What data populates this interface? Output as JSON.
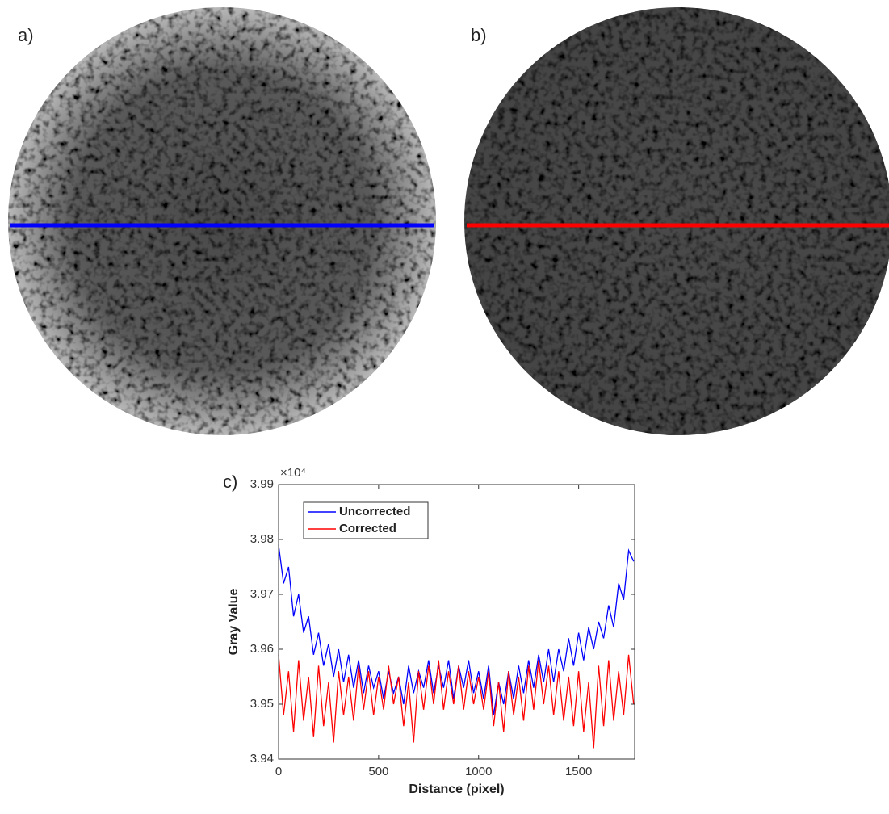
{
  "panel_labels": {
    "a": "a)",
    "b": "b)"
  },
  "chart_data": {
    "type": "line",
    "panel_label": "c)",
    "x_label": "Distance (pixel)",
    "y_label": "Gray Value",
    "y_multiplier": "×10⁴",
    "x": [
      0,
      25,
      50,
      75,
      100,
      125,
      150,
      175,
      200,
      225,
      250,
      275,
      300,
      325,
      350,
      375,
      400,
      425,
      450,
      475,
      500,
      525,
      550,
      575,
      600,
      625,
      650,
      675,
      700,
      725,
      750,
      775,
      800,
      825,
      850,
      875,
      900,
      925,
      950,
      975,
      1000,
      1025,
      1050,
      1075,
      1100,
      1125,
      1150,
      1175,
      1200,
      1225,
      1250,
      1275,
      1300,
      1325,
      1350,
      1375,
      1400,
      1425,
      1450,
      1475,
      1500,
      1525,
      1550,
      1575,
      1600,
      1625,
      1650,
      1675,
      1700,
      1725,
      1750,
      1775
    ],
    "series": [
      {
        "name": "Uncorrected",
        "color": "#0000ff",
        "values": [
          39790,
          39720,
          39750,
          39660,
          39700,
          39630,
          39660,
          39590,
          39630,
          39570,
          39610,
          39550,
          39600,
          39540,
          39590,
          39530,
          39580,
          39520,
          39570,
          39530,
          39560,
          39510,
          39560,
          39520,
          39550,
          39500,
          39570,
          39520,
          39560,
          39530,
          39580,
          39520,
          39570,
          39530,
          39580,
          39510,
          39570,
          39530,
          39580,
          39520,
          39560,
          39510,
          39570,
          39480,
          39540,
          39500,
          39560,
          39510,
          39570,
          39520,
          39580,
          39530,
          39590,
          39540,
          39600,
          39540,
          39600,
          39560,
          39620,
          39570,
          39630,
          39580,
          39640,
          39600,
          39650,
          39620,
          39680,
          39640,
          39720,
          39690,
          39780,
          39760
        ]
      },
      {
        "name": "Corrected",
        "color": "#ff0000",
        "values": [
          39590,
          39480,
          39560,
          39450,
          39580,
          39470,
          39550,
          39440,
          39570,
          39460,
          39540,
          39430,
          39560,
          39480,
          39550,
          39470,
          39570,
          39490,
          39560,
          39480,
          39550,
          39490,
          39570,
          39500,
          39550,
          39460,
          39540,
          39430,
          39560,
          39490,
          39570,
          39500,
          39580,
          39490,
          39560,
          39500,
          39570,
          39490,
          39560,
          39500,
          39550,
          39490,
          39560,
          39460,
          39540,
          39450,
          39560,
          39480,
          39550,
          39470,
          39570,
          39490,
          39580,
          39500,
          39570,
          39480,
          39560,
          39470,
          39550,
          39460,
          39560,
          39450,
          39540,
          39420,
          39570,
          39460,
          39580,
          39470,
          39560,
          39480,
          39590,
          39500
        ]
      }
    ],
    "xlim": [
      0,
      1780
    ],
    "xticks": [
      0,
      500,
      1000,
      1500
    ],
    "ylim": [
      39400,
      39900
    ],
    "yticks": [
      {
        "value": 39400,
        "label": "3.94"
      },
      {
        "value": 39500,
        "label": "3.95"
      },
      {
        "value": 39600,
        "label": "3.96"
      },
      {
        "value": 39700,
        "label": "3.97"
      },
      {
        "value": 39800,
        "label": "3.98"
      },
      {
        "value": 39900,
        "label": "3.99"
      }
    ],
    "grid": false,
    "legend": "upper-left"
  }
}
